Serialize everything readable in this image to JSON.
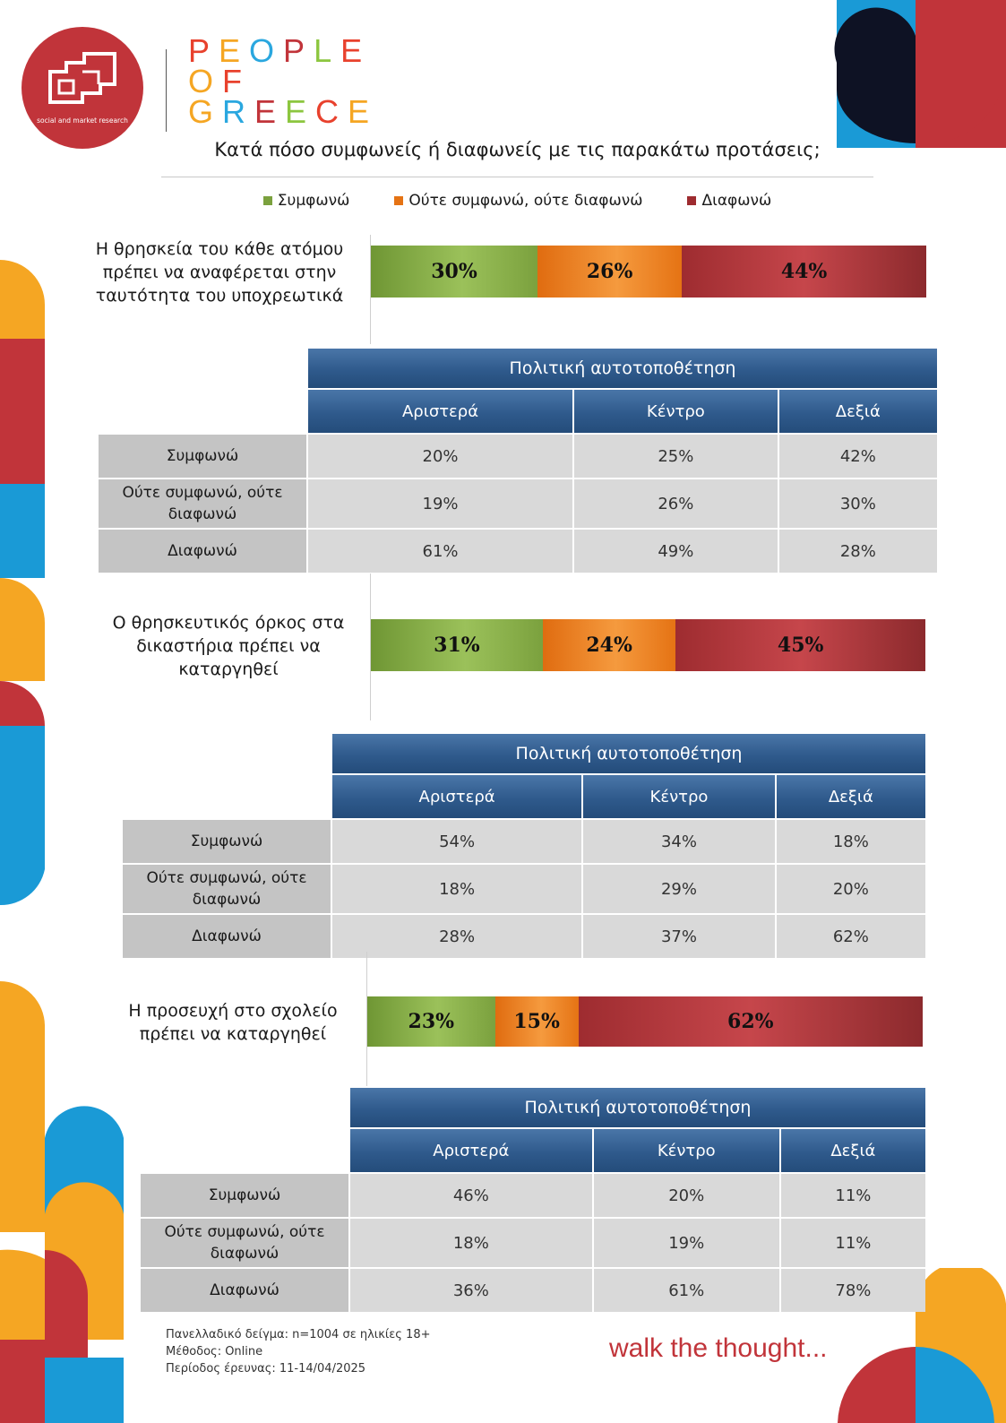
{
  "brand": {
    "logo_text": "social and market research",
    "wordmark_lines": [
      "PEOPLE",
      "OF",
      "GREECE"
    ],
    "wordmark_colors": [
      "#e8412d",
      "#f5a623",
      "#2aa7df",
      "#c1343a",
      "#8cc63f",
      "#e8412d",
      "#f5a623"
    ]
  },
  "question": "Κατά πόσο συμφωνείς ή διαφωνείς με τις παρακάτω προτάσεις;",
  "legend": [
    {
      "label": "Συμφωνώ",
      "color": "#7ba13e"
    },
    {
      "label": "Ούτε συμφωνώ, ούτε διαφωνώ",
      "color": "#e57314"
    },
    {
      "label": "Διαφωνώ",
      "color": "#9e2c30"
    }
  ],
  "chart_data": [
    {
      "type": "bar",
      "stacked": true,
      "orientation": "horizontal",
      "categories": [
        "Η θρησκεία του κάθε ατόμου πρέπει να αναφέρεται στην ταυτότητα του υποχρεωτικά"
      ],
      "series": [
        {
          "name": "Συμφωνώ",
          "values": [
            30
          ]
        },
        {
          "name": "Ούτε συμφωνώ, ούτε διαφωνώ",
          "values": [
            26
          ]
        },
        {
          "name": "Διαφωνώ",
          "values": [
            44
          ]
        }
      ],
      "data_labels": [
        "30%",
        "26%",
        "44%"
      ]
    },
    {
      "type": "bar",
      "stacked": true,
      "orientation": "horizontal",
      "categories": [
        "Ο θρησκευτικός όρκος στα δικαστήρια πρέπει να καταργηθεί"
      ],
      "series": [
        {
          "name": "Συμφωνώ",
          "values": [
            31
          ]
        },
        {
          "name": "Ούτε συμφωνώ, ούτε διαφωνώ",
          "values": [
            24
          ]
        },
        {
          "name": "Διαφωνώ",
          "values": [
            45
          ]
        }
      ],
      "data_labels": [
        "31%",
        "24%",
        "45%"
      ]
    },
    {
      "type": "bar",
      "stacked": true,
      "orientation": "horizontal",
      "categories": [
        "Η προσευχή στο σχολείο πρέπει να καταργηθεί"
      ],
      "series": [
        {
          "name": "Συμφωνώ",
          "values": [
            23
          ]
        },
        {
          "name": "Ούτε συμφωνώ, ούτε διαφωνώ",
          "values": [
            15
          ]
        },
        {
          "name": "Διαφωνώ",
          "values": [
            62
          ]
        }
      ],
      "data_labels": [
        "23%",
        "15%",
        "62%"
      ]
    },
    {
      "type": "table",
      "title": "Πολιτική αυτοτοποθέτηση",
      "columns": [
        "Αριστερά",
        "Κέντρο",
        "Δεξιά"
      ],
      "rows": [
        {
          "label": "Συμφωνώ",
          "values": [
            "20%",
            "25%",
            "42%"
          ]
        },
        {
          "label": "Ούτε συμφωνώ, ούτε διαφωνώ",
          "values": [
            "19%",
            "26%",
            "30%"
          ]
        },
        {
          "label": "Διαφωνώ",
          "values": [
            "61%",
            "49%",
            "28%"
          ]
        }
      ]
    },
    {
      "type": "table",
      "title": "Πολιτική αυτοτοποθέτηση",
      "columns": [
        "Αριστερά",
        "Κέντρο",
        "Δεξιά"
      ],
      "rows": [
        {
          "label": "Συμφωνώ",
          "values": [
            "54%",
            "34%",
            "18%"
          ]
        },
        {
          "label": "Ούτε συμφωνώ, ούτε διαφωνώ",
          "values": [
            "18%",
            "29%",
            "20%"
          ]
        },
        {
          "label": "Διαφωνώ",
          "values": [
            "28%",
            "37%",
            "62%"
          ]
        }
      ]
    },
    {
      "type": "table",
      "title": "Πολιτική αυτοτοποθέτηση",
      "columns": [
        "Αριστερά",
        "Κέντρο",
        "Δεξιά"
      ],
      "rows": [
        {
          "label": "Συμφωνώ",
          "values": [
            "46%",
            "20%",
            "11%"
          ]
        },
        {
          "label": "Ούτε συμφωνώ, ούτε διαφωνώ",
          "values": [
            "18%",
            "19%",
            "11%"
          ]
        },
        {
          "label": "Διαφωνώ",
          "values": [
            "36%",
            "61%",
            "78%"
          ]
        }
      ]
    }
  ],
  "footer": {
    "notes": [
      "Πανελλαδικό δείγμα: n=1004 σε ηλικίες 18+",
      "Μέθοδος: Online",
      "Περίοδος έρευνας: 11-14/04/2025"
    ],
    "tagline": "walk the thought..."
  }
}
